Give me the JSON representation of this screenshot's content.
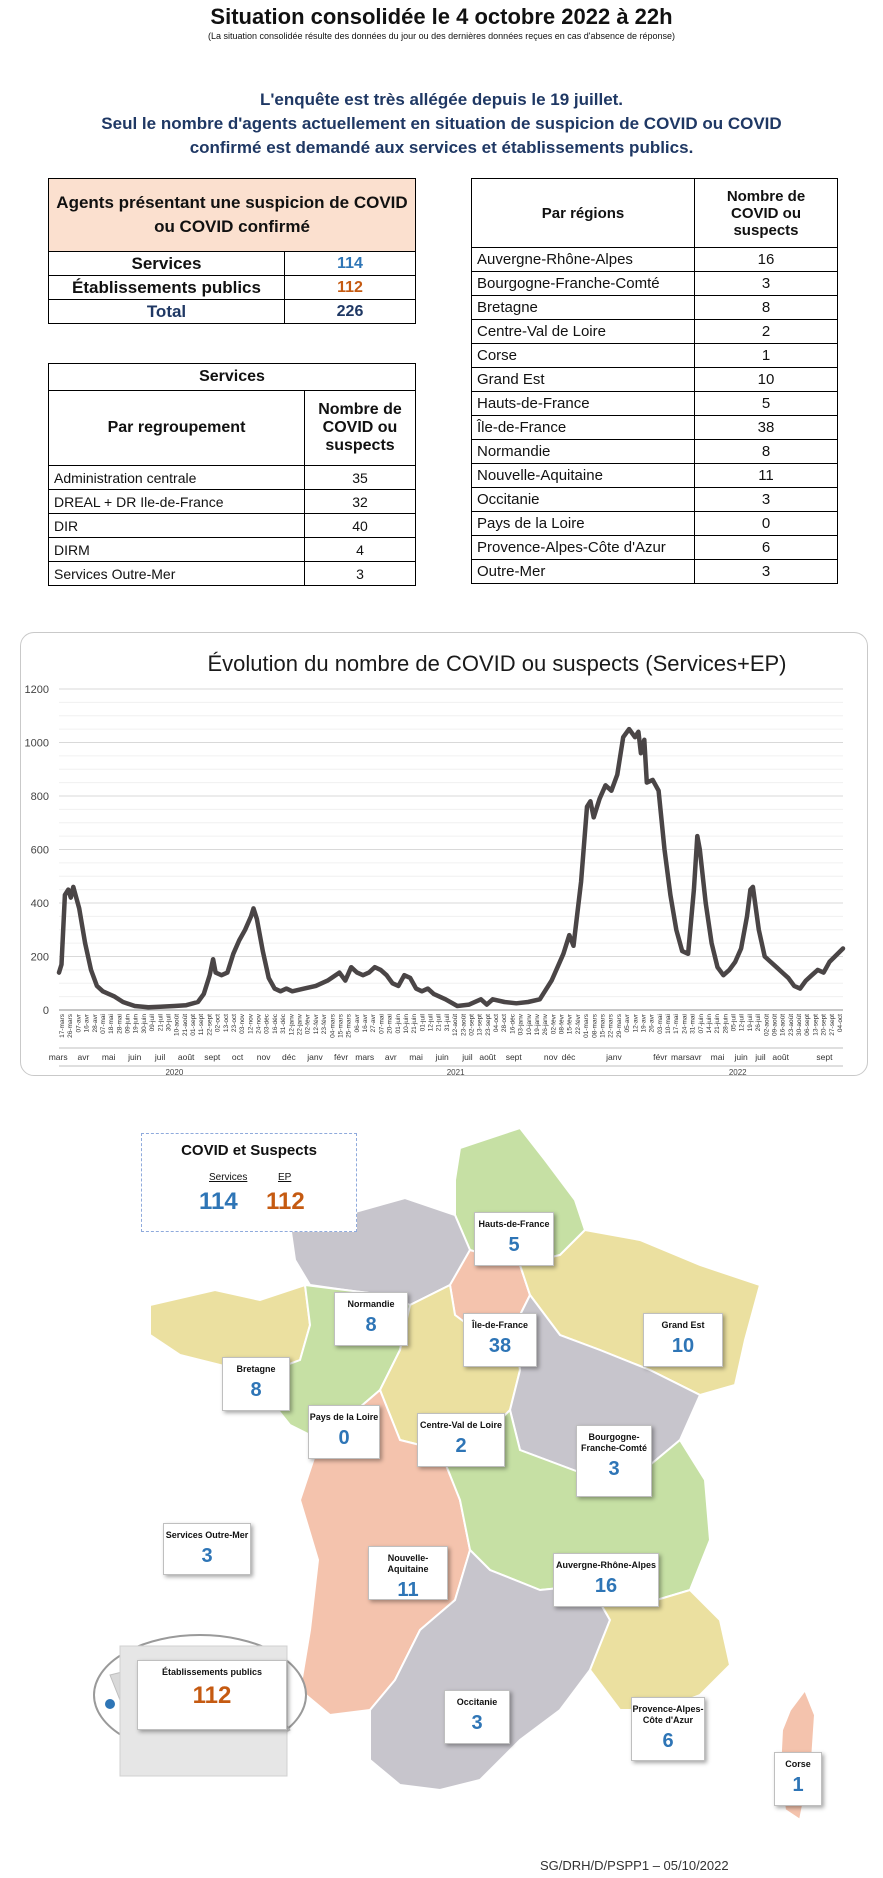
{
  "header": {
    "title": "Situation consolidée le 4 octobre 2022 à 22h",
    "subtitle": "(La situation consolidée résulte des données du jour ou des dernières données reçues en cas d'absence de réponse)"
  },
  "notice": {
    "line1": "L'enquête est très allégée depuis le 19 juillet.",
    "line2": "Seul le nombre d'agents actuellement en situation de suspicion de COVID ou COVID",
    "line3": "confirmé est demandé aux services et établissements publics."
  },
  "agents_table": {
    "header": "Agents présentant une suspicion de COVID ou COVID confirmé",
    "rows": [
      {
        "label": "Services",
        "value": "114"
      },
      {
        "label": "Établissements publics",
        "value": "112"
      },
      {
        "label": "Total",
        "value": "226"
      }
    ]
  },
  "services_table": {
    "title": "Services",
    "col1": "Par regroupement",
    "col2": "Nombre de COVID ou suspects",
    "rows": [
      {
        "label": "Administration centrale",
        "value": "35"
      },
      {
        "label": "DREAL + DR Ile-de-France",
        "value": "32"
      },
      {
        "label": "DIR",
        "value": "40"
      },
      {
        "label": "DIRM",
        "value": "4"
      },
      {
        "label": "Services Outre-Mer",
        "value": "3"
      }
    ]
  },
  "regions_table": {
    "col1": "Par régions",
    "col2": "Nombre de COVID ou suspects",
    "rows": [
      {
        "label": "Auvergne-Rhône-Alpes",
        "value": "16"
      },
      {
        "label": "Bourgogne-Franche-Comté",
        "value": "3"
      },
      {
        "label": "Bretagne",
        "value": "8"
      },
      {
        "label": "Centre-Val de Loire",
        "value": "2"
      },
      {
        "label": "Corse",
        "value": "1"
      },
      {
        "label": "Grand Est",
        "value": "10"
      },
      {
        "label": "Hauts-de-France",
        "value": "5"
      },
      {
        "label": "Île-de-France",
        "value": "38"
      },
      {
        "label": "Normandie",
        "value": "8"
      },
      {
        "label": "Nouvelle-Aquitaine",
        "value": "11"
      },
      {
        "label": "Occitanie",
        "value": "3"
      },
      {
        "label": "Pays de la Loire",
        "value": "0"
      },
      {
        "label": "Provence-Alpes-Côte d'Azur",
        "value": "6"
      },
      {
        "label": "Outre-Mer",
        "value": "3"
      }
    ]
  },
  "chart_data": {
    "type": "line",
    "title": "Évolution du nombre de COVID ou suspects (Services+EP)",
    "xlabel": "",
    "ylabel": "",
    "ylim": [
      0,
      1200
    ],
    "yticks": [
      0,
      200,
      400,
      600,
      800,
      1000,
      1200
    ],
    "grid": true,
    "line_color": "#4a4546",
    "x_range": [
      "2020-03-17",
      "2022-10-04"
    ],
    "points": [
      [
        "2020-03-17",
        140
      ],
      [
        "2020-03-20",
        170
      ],
      [
        "2020-03-24",
        430
      ],
      [
        "2020-03-28",
        450
      ],
      [
        "2020-03-31",
        420
      ],
      [
        "2020-04-03",
        460
      ],
      [
        "2020-04-10",
        380
      ],
      [
        "2020-04-17",
        250
      ],
      [
        "2020-04-24",
        150
      ],
      [
        "2020-05-01",
        90
      ],
      [
        "2020-05-08",
        70
      ],
      [
        "2020-05-15",
        60
      ],
      [
        "2020-05-22",
        50
      ],
      [
        "2020-06-01",
        30
      ],
      [
        "2020-06-15",
        15
      ],
      [
        "2020-07-01",
        10
      ],
      [
        "2020-07-15",
        12
      ],
      [
        "2020-08-01",
        15
      ],
      [
        "2020-08-15",
        18
      ],
      [
        "2020-08-29",
        30
      ],
      [
        "2020-09-05",
        60
      ],
      [
        "2020-09-12",
        130
      ],
      [
        "2020-09-16",
        190
      ],
      [
        "2020-09-19",
        140
      ],
      [
        "2020-09-26",
        130
      ],
      [
        "2020-10-03",
        140
      ],
      [
        "2020-10-10",
        210
      ],
      [
        "2020-10-17",
        260
      ],
      [
        "2020-10-24",
        300
      ],
      [
        "2020-10-31",
        350
      ],
      [
        "2020-11-03",
        380
      ],
      [
        "2020-11-07",
        340
      ],
      [
        "2020-11-14",
        220
      ],
      [
        "2020-11-21",
        120
      ],
      [
        "2020-11-28",
        80
      ],
      [
        "2020-12-05",
        70
      ],
      [
        "2020-12-12",
        80
      ],
      [
        "2020-12-19",
        70
      ],
      [
        "2021-01-02",
        80
      ],
      [
        "2021-01-16",
        90
      ],
      [
        "2021-01-30",
        110
      ],
      [
        "2021-02-13",
        140
      ],
      [
        "2021-02-20",
        110
      ],
      [
        "2021-02-27",
        160
      ],
      [
        "2021-03-06",
        140
      ],
      [
        "2021-03-13",
        130
      ],
      [
        "2021-03-20",
        140
      ],
      [
        "2021-03-27",
        160
      ],
      [
        "2021-04-03",
        150
      ],
      [
        "2021-04-10",
        130
      ],
      [
        "2021-04-17",
        100
      ],
      [
        "2021-04-24",
        90
      ],
      [
        "2021-05-01",
        130
      ],
      [
        "2021-05-08",
        120
      ],
      [
        "2021-05-15",
        80
      ],
      [
        "2021-05-22",
        70
      ],
      [
        "2021-05-29",
        80
      ],
      [
        "2021-06-05",
        60
      ],
      [
        "2021-06-19",
        40
      ],
      [
        "2021-07-03",
        15
      ],
      [
        "2021-07-17",
        20
      ],
      [
        "2021-07-31",
        40
      ],
      [
        "2021-08-07",
        20
      ],
      [
        "2021-08-14",
        40
      ],
      [
        "2021-08-28",
        30
      ],
      [
        "2021-09-11",
        25
      ],
      [
        "2021-09-25",
        30
      ],
      [
        "2021-10-09",
        40
      ],
      [
        "2021-10-23",
        110
      ],
      [
        "2021-11-06",
        210
      ],
      [
        "2021-11-13",
        280
      ],
      [
        "2021-11-18",
        240
      ],
      [
        "2021-11-27",
        480
      ],
      [
        "2021-12-04",
        760
      ],
      [
        "2021-12-08",
        780
      ],
      [
        "2021-12-12",
        720
      ],
      [
        "2021-12-19",
        790
      ],
      [
        "2021-12-26",
        840
      ],
      [
        "2022-01-02",
        820
      ],
      [
        "2022-01-09",
        880
      ],
      [
        "2022-01-16",
        1020
      ],
      [
        "2022-01-23",
        1050
      ],
      [
        "2022-01-30",
        1020
      ],
      [
        "2022-02-03",
        1040
      ],
      [
        "2022-02-06",
        960
      ],
      [
        "2022-02-10",
        1010
      ],
      [
        "2022-02-13",
        850
      ],
      [
        "2022-02-20",
        860
      ],
      [
        "2022-02-27",
        820
      ],
      [
        "2022-03-06",
        600
      ],
      [
        "2022-03-13",
        430
      ],
      [
        "2022-03-20",
        300
      ],
      [
        "2022-03-27",
        220
      ],
      [
        "2022-04-03",
        210
      ],
      [
        "2022-04-10",
        450
      ],
      [
        "2022-04-14",
        650
      ],
      [
        "2022-04-17",
        600
      ],
      [
        "2022-04-24",
        400
      ],
      [
        "2022-05-01",
        250
      ],
      [
        "2022-05-08",
        160
      ],
      [
        "2022-05-15",
        130
      ],
      [
        "2022-05-22",
        150
      ],
      [
        "2022-05-29",
        180
      ],
      [
        "2022-06-05",
        230
      ],
      [
        "2022-06-12",
        350
      ],
      [
        "2022-06-16",
        450
      ],
      [
        "2022-06-19",
        460
      ],
      [
        "2022-06-26",
        300
      ],
      [
        "2022-07-03",
        200
      ],
      [
        "2022-07-10",
        180
      ],
      [
        "2022-07-17",
        160
      ],
      [
        "2022-07-24",
        140
      ],
      [
        "2022-07-31",
        120
      ],
      [
        "2022-08-07",
        90
      ],
      [
        "2022-08-14",
        80
      ],
      [
        "2022-08-21",
        110
      ],
      [
        "2022-08-28",
        130
      ],
      [
        "2022-09-04",
        150
      ],
      [
        "2022-09-11",
        140
      ],
      [
        "2022-09-18",
        180
      ],
      [
        "2022-10-04",
        230
      ]
    ],
    "month_labels": [
      [
        "mars",
        "2020-03-16"
      ],
      [
        "avr",
        "2020-04-15"
      ],
      [
        "mai",
        "2020-05-15"
      ],
      [
        "juin",
        "2020-06-15"
      ],
      [
        "juil",
        "2020-07-15"
      ],
      [
        "août",
        "2020-08-15"
      ],
      [
        "sept",
        "2020-09-15"
      ],
      [
        "oct",
        "2020-10-15"
      ],
      [
        "nov",
        "2020-11-15"
      ],
      [
        "déc",
        "2020-12-15"
      ],
      [
        "janv",
        "2021-01-15"
      ],
      [
        "févr",
        "2021-02-15"
      ],
      [
        "mars",
        "2021-03-15"
      ],
      [
        "avr",
        "2021-04-15"
      ],
      [
        "mai",
        "2021-05-15"
      ],
      [
        "juin",
        "2021-06-15"
      ],
      [
        "juil",
        "2021-07-15"
      ],
      [
        "août",
        "2021-08-08"
      ],
      [
        "sept",
        "2021-09-08"
      ],
      [
        "nov",
        "2021-10-22"
      ],
      [
        "déc",
        "2021-11-12"
      ],
      [
        "janv",
        "2022-01-05"
      ],
      [
        "févr",
        "2022-03-01"
      ],
      [
        "mars",
        "2022-03-25"
      ],
      [
        "avr",
        "2022-04-12"
      ],
      [
        "mai",
        "2022-05-08"
      ],
      [
        "juin",
        "2022-06-05"
      ],
      [
        "juil",
        "2022-06-28"
      ],
      [
        "août",
        "2022-07-22"
      ],
      [
        "sept",
        "2022-09-12"
      ]
    ],
    "year_labels": [
      [
        "2020",
        "2020-08-01"
      ],
      [
        "2021",
        "2021-07-01"
      ],
      [
        "2022",
        "2022-06-01"
      ]
    ],
    "tick_labels": [
      "17-mars",
      "26-mars",
      "07-avr",
      "16-avr",
      "28-avr",
      "07-mai",
      "18-mai",
      "28-mai",
      "09-juin",
      "19-juin",
      "30-juin",
      "09-juil",
      "21-juil",
      "30-juil",
      "10-août",
      "21-août",
      "01-sept",
      "11-sept",
      "22-sept",
      "02-oct",
      "13-oct",
      "23-oct",
      "03-nov",
      "12-nov",
      "24-nov",
      "03-déc",
      "16-déc",
      "31-déc",
      "12-janv",
      "22-janv",
      "02-févr",
      "12-févr",
      "23-févr",
      "04-mars",
      "15-mars",
      "25-mars",
      "06-avr",
      "16-avr",
      "27-avr",
      "07-mai",
      "20-mai",
      "01-juin",
      "10-juin",
      "21-juin",
      "01-juil",
      "12-juil",
      "21-juil",
      "31-juil",
      "12-août",
      "23-août",
      "02-sept",
      "13-sept",
      "23-sept",
      "04-oct",
      "28-oct",
      "16-déc",
      "03-janv",
      "10-janv",
      "19-janv",
      "26-janv",
      "02-févr",
      "08-févr",
      "15-févr",
      "22-févr",
      "01-mars",
      "08-mars",
      "15-mars",
      "22-mars",
      "29-mars",
      "05-avr",
      "12-avr",
      "19-avr",
      "26-avr",
      "03-mai",
      "10-mai",
      "17-mai",
      "24-mai",
      "31-mai",
      "07-juin",
      "14-juin",
      "21-juin",
      "28-juin",
      "05-juil",
      "12-juil",
      "19-juil",
      "26-juil",
      "02-août",
      "09-août",
      "16-août",
      "23-août",
      "30-août",
      "06-sept",
      "13-sept",
      "20-sept",
      "27-sept",
      "04-oct"
    ]
  },
  "legend_box": {
    "title": "COVID et Suspects",
    "services_label": "Services",
    "ep_label": "EP",
    "services_value": "114",
    "ep_value": "112"
  },
  "map": {
    "colors": {
      "green": "#c6e0a4",
      "yellow": "#ebe0a0",
      "grey": "#c7c5cc",
      "salmon": "#f4c3ad"
    },
    "regions": {
      "hauts_de_france": {
        "name": "Hauts-de-France",
        "value": "5"
      },
      "normandie": {
        "name": "Normandie",
        "value": "8"
      },
      "ile_de_france": {
        "name": "Île-de-France",
        "value": "38"
      },
      "grand_est": {
        "name": "Grand Est",
        "value": "10"
      },
      "bretagne": {
        "name": "Bretagne",
        "value": "8"
      },
      "pays_de_la_loire": {
        "name": "Pays de la Loire",
        "value": "0"
      },
      "centre_val_de_loire": {
        "name": "Centre-Val de Loire",
        "value": "2"
      },
      "bourgogne_franche_comte": {
        "name": "Bourgogne-Franche-Comté",
        "value": "3"
      },
      "nouvelle_aquitaine": {
        "name": "Nouvelle-Aquitaine",
        "value": "11"
      },
      "auvergne_rhone_alpes": {
        "name": "Auvergne-Rhône-Alpes",
        "value": "16"
      },
      "occitanie": {
        "name": "Occitanie",
        "value": "3"
      },
      "paca": {
        "name": "Provence-Alpes-Côte d'Azur",
        "value": "6"
      },
      "corse": {
        "name": "Corse",
        "value": "1"
      }
    },
    "outre_mer": {
      "name": "Services Outre-Mer",
      "value": "3"
    },
    "etablissements": {
      "name": "Établissements publics",
      "value": "112"
    }
  },
  "footer": "SG/DRH/D/PSPP1 – 05/10/2022"
}
